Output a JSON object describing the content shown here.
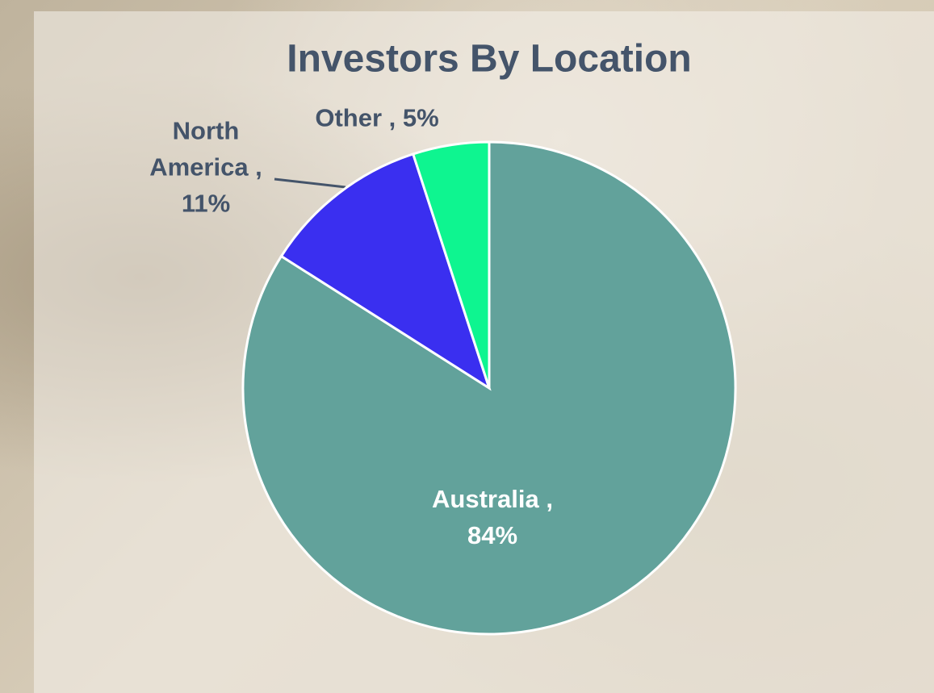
{
  "chart_data": {
    "type": "pie",
    "title": "Investors By Location",
    "categories": [
      "Australia ,",
      "North America ,",
      "Other ,"
    ],
    "values": [
      84,
      11,
      5
    ],
    "value_labels": [
      "84%",
      "11%",
      "5%"
    ],
    "colors": [
      "#62a29b",
      "#3a2ff0",
      "#0ef590"
    ]
  }
}
